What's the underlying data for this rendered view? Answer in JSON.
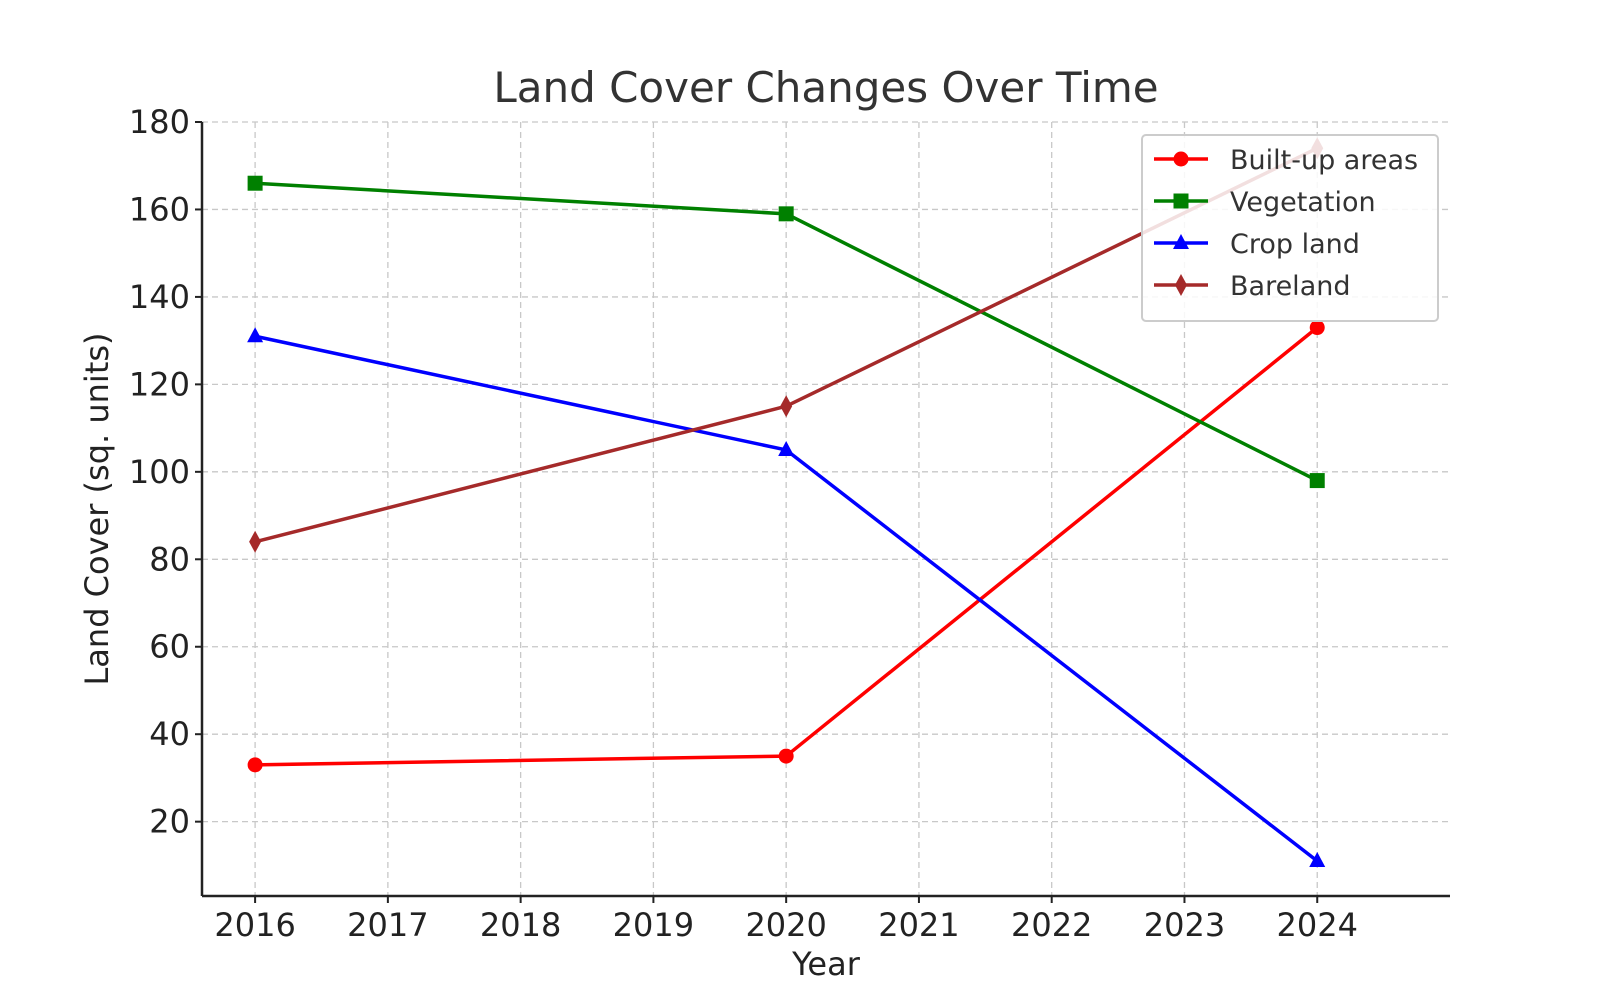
{
  "chart_data": {
    "type": "line",
    "title": "Land Cover Changes Over Time",
    "xlabel": "Year",
    "ylabel": "Land Cover (sq. units)",
    "x": [
      2016,
      2020,
      2024
    ],
    "xticks": [
      "2016",
      "2017",
      "2018",
      "2019",
      "2020",
      "2021",
      "2022",
      "2023",
      "2024"
    ],
    "xlim": [
      2015.6,
      2025.0
    ],
    "yticks": [
      "20",
      "40",
      "60",
      "80",
      "100",
      "120",
      "140",
      "160",
      "180"
    ],
    "ylim": [
      3,
      180
    ],
    "grid": true,
    "legend_position": "top-right",
    "series": [
      {
        "name": "Built-up areas",
        "values": [
          33,
          35,
          133
        ],
        "color": "#ff0000",
        "marker": "circle"
      },
      {
        "name": "Vegetation",
        "values": [
          166,
          159,
          98
        ],
        "color": "#008000",
        "marker": "square"
      },
      {
        "name": "Crop land",
        "values": [
          131,
          105,
          11
        ],
        "color": "#0000ff",
        "marker": "triangle"
      },
      {
        "name": "Bareland",
        "values": [
          84,
          115,
          174
        ],
        "color": "#a52a2a",
        "marker": "diamond"
      }
    ]
  }
}
